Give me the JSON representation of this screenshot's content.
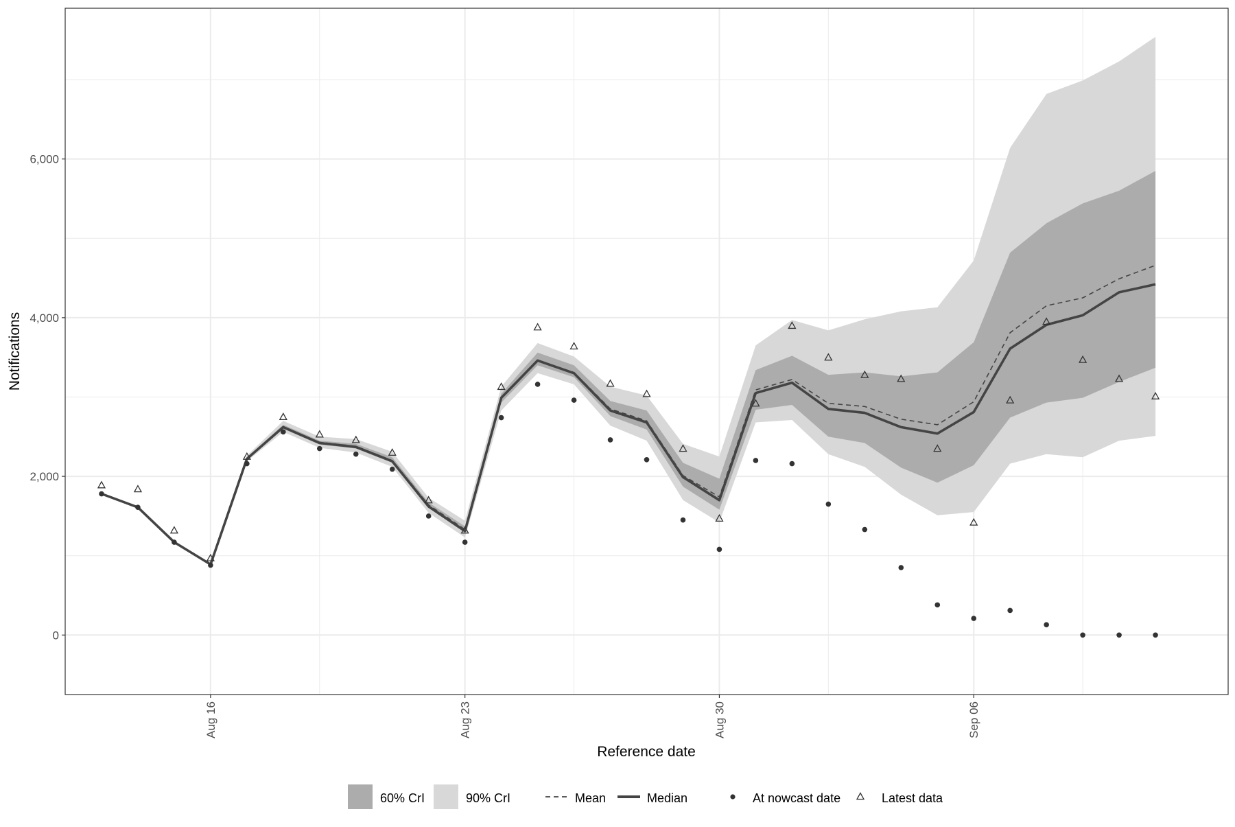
{
  "chart_data": {
    "type": "line",
    "xlabel": "Reference date",
    "ylabel": "Notifications",
    "x_tick_labels": [
      {
        "date": "2021-08-16",
        "label": "Aug 16"
      },
      {
        "date": "2021-08-23",
        "label": "Aug 23"
      },
      {
        "date": "2021-08-30",
        "label": "Aug 30"
      },
      {
        "date": "2021-09-06",
        "label": "Sep 06"
      }
    ],
    "y_ticks": [
      0,
      2000,
      4000,
      6000
    ],
    "y_tick_labels": [
      "0",
      "2,000",
      "4,000",
      "6,000"
    ],
    "xlim": [
      "2021-08-12",
      "2021-09-13"
    ],
    "ylim": [
      -750,
      7900
    ],
    "grid": true,
    "legend_position": "bottom",
    "legend": [
      {
        "key": "ci60",
        "label": "60% CrI"
      },
      {
        "key": "ci90",
        "label": "90% CrI"
      },
      {
        "key": "mean",
        "label": "Mean"
      },
      {
        "key": "median",
        "label": "Median"
      },
      {
        "key": "nowcast",
        "label": "At nowcast date"
      },
      {
        "key": "latest",
        "label": "Latest data"
      }
    ],
    "colors": {
      "ci60": "#acacac",
      "ci90": "#d8d8d8",
      "line": "#444444",
      "grid": "#ebebeb",
      "axis_text": "#4d4d4d",
      "panel_border": "#333333"
    },
    "dates": [
      "2021-08-13",
      "2021-08-14",
      "2021-08-15",
      "2021-08-16",
      "2021-08-17",
      "2021-08-18",
      "2021-08-19",
      "2021-08-20",
      "2021-08-21",
      "2021-08-22",
      "2021-08-23",
      "2021-08-24",
      "2021-08-25",
      "2021-08-26",
      "2021-08-27",
      "2021-08-28",
      "2021-08-29",
      "2021-08-30",
      "2021-08-31",
      "2021-09-01",
      "2021-09-02",
      "2021-09-03",
      "2021-09-04",
      "2021-09-05",
      "2021-09-06",
      "2021-09-07",
      "2021-09-08",
      "2021-09-09",
      "2021-09-10",
      "2021-09-11"
    ],
    "series": [
      {
        "key": "median",
        "name": "Median",
        "values": [
          1780,
          1610,
          1170,
          890,
          2220,
          2620,
          2420,
          2370,
          2190,
          1620,
          1310,
          2990,
          3460,
          3300,
          2830,
          2680,
          1990,
          1700,
          3050,
          3180,
          2850,
          2800,
          2620,
          2540,
          2810,
          3610,
          3910,
          4030,
          4320,
          4420
        ]
      },
      {
        "key": "mean",
        "name": "Mean",
        "values": [
          1780,
          1610,
          1170,
          890,
          2220,
          2620,
          2430,
          2380,
          2200,
          1640,
          1330,
          3000,
          3460,
          3310,
          2850,
          2700,
          2010,
          1740,
          3090,
          3220,
          2920,
          2880,
          2720,
          2650,
          2940,
          3810,
          4150,
          4250,
          4490,
          4660
        ]
      },
      {
        "key": "nowcast",
        "name": "At nowcast date",
        "values": [
          1780,
          1610,
          1170,
          880,
          2160,
          2560,
          2350,
          2280,
          2090,
          1500,
          1170,
          2740,
          3160,
          2960,
          2460,
          2210,
          1450,
          1080,
          2200,
          2160,
          1650,
          1330,
          850,
          380,
          210,
          310,
          130,
          0,
          0,
          0
        ]
      },
      {
        "key": "latest",
        "name": "Latest data",
        "values": [
          1890,
          1840,
          1320,
          970,
          2250,
          2750,
          2530,
          2460,
          2300,
          1700,
          1320,
          3130,
          3880,
          3640,
          3170,
          3040,
          2350,
          1470,
          2920,
          3900,
          3500,
          3280,
          3230,
          2350,
          1420,
          2960,
          3950,
          3470,
          3230,
          3010
        ]
      }
    ],
    "bands": [
      {
        "key": "ci90",
        "name": "90% CrI",
        "lower": [
          1780,
          1610,
          1170,
          890,
          2190,
          2560,
          2360,
          2300,
          2120,
          1540,
          1230,
          2830,
          3300,
          3160,
          2640,
          2450,
          1700,
          1420,
          2680,
          2710,
          2280,
          2120,
          1770,
          1510,
          1550,
          2160,
          2280,
          2240,
          2450,
          2510
        ],
        "upper": [
          1780,
          1610,
          1170,
          890,
          2260,
          2700,
          2500,
          2470,
          2310,
          1730,
          1440,
          3130,
          3680,
          3510,
          3130,
          3020,
          2410,
          2250,
          3650,
          3970,
          3840,
          3980,
          4080,
          4130,
          4720,
          6140,
          6820,
          6990,
          7230,
          7540
        ]
      },
      {
        "key": "ci60",
        "name": "60% CrI",
        "lower": [
          1780,
          1610,
          1170,
          890,
          2210,
          2600,
          2400,
          2350,
          2170,
          1600,
          1290,
          2930,
          3400,
          3250,
          2760,
          2590,
          1870,
          1580,
          2840,
          2900,
          2500,
          2420,
          2110,
          1920,
          2140,
          2740,
          2930,
          2990,
          3190,
          3370
        ],
        "upper": [
          1780,
          1610,
          1170,
          890,
          2240,
          2650,
          2450,
          2410,
          2240,
          1670,
          1370,
          3040,
          3560,
          3400,
          2950,
          2830,
          2170,
          1970,
          3340,
          3520,
          3280,
          3310,
          3260,
          3310,
          3690,
          4820,
          5190,
          5440,
          5600,
          5850
        ]
      }
    ]
  }
}
